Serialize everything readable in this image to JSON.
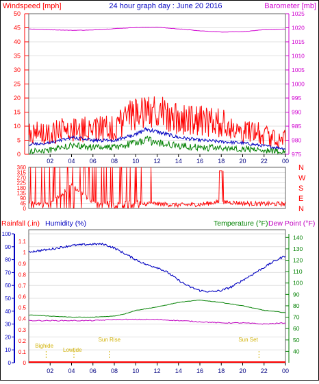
{
  "chart_data": [
    {
      "id": "wind-baro",
      "type": "line",
      "title": "24 hour graph day : June 20 2016",
      "left_axis_label": "Windspeed [mph]",
      "right_axis_label": "Barometer [mb]",
      "left_ticks": [
        0,
        5,
        10,
        15,
        20,
        25,
        30,
        35,
        40,
        45,
        50
      ],
      "left_range": [
        0,
        50
      ],
      "right_ticks": [
        975,
        980,
        985,
        990,
        995,
        1000,
        1005,
        1010,
        1015,
        1020,
        1025
      ],
      "right_range": [
        975,
        1025
      ],
      "x_tick_labels": [
        "02",
        "04",
        "06",
        "08",
        "10",
        "12",
        "14",
        "16",
        "18",
        "20",
        "22",
        "00"
      ],
      "x_range_hours": [
        0,
        24
      ],
      "series": [
        {
          "key": "gust",
          "color": "#ff0000",
          "hours": [
            0,
            2,
            4,
            6,
            8,
            10,
            11,
            12,
            13,
            14,
            16,
            18,
            20,
            22,
            24
          ],
          "values": [
            7,
            8,
            9,
            9,
            9,
            15,
            16,
            15,
            14,
            13,
            12,
            11,
            8,
            7,
            5
          ]
        },
        {
          "key": "average",
          "color": "#0000c0",
          "hours": [
            0,
            2,
            4,
            6,
            8,
            10,
            11,
            12,
            14,
            16,
            18,
            20,
            22,
            24
          ],
          "values": [
            3.5,
            4,
            6,
            5,
            5,
            7,
            9,
            8,
            6,
            5,
            4.5,
            4,
            3,
            2
          ]
        },
        {
          "key": "lull",
          "color": "#008000",
          "hours": [
            0,
            2,
            4,
            6,
            8,
            10,
            11,
            12,
            14,
            16,
            18,
            20,
            22,
            24
          ],
          "values": [
            1,
            1.5,
            3,
            2.5,
            2.5,
            4,
            5,
            4,
            3,
            2.5,
            2,
            2,
            1.5,
            1
          ]
        },
        {
          "key": "barometer",
          "color": "#d000d0",
          "axis": "right",
          "hours": [
            0,
            2,
            4,
            6,
            8,
            10,
            12,
            14,
            16,
            18,
            20,
            22,
            24
          ],
          "values": [
            1019.6,
            1019.3,
            1019.1,
            1019.2,
            1019.7,
            1020.1,
            1020.2,
            1019.6,
            1018.9,
            1018.5,
            1018.6,
            1019.3,
            1019.5
          ]
        }
      ]
    },
    {
      "id": "direction",
      "type": "line",
      "left_ticks": [
        0,
        45,
        90,
        135,
        180,
        225,
        270,
        315,
        360
      ],
      "left_range": [
        0,
        360
      ],
      "right_labels": [
        "N",
        "W",
        "S",
        "E",
        "N"
      ],
      "x_range_hours": [
        0,
        24
      ],
      "series": [
        {
          "key": "direction",
          "color": "#ff0000",
          "hours": [
            0,
            2,
            4,
            6,
            8,
            10,
            12,
            14,
            16,
            18,
            20,
            22,
            24
          ],
          "values": [
            45,
            40,
            200,
            60,
            40,
            50,
            40,
            30,
            35,
            60,
            45,
            40,
            40
          ]
        }
      ]
    },
    {
      "id": "temp-hum-rain",
      "type": "line",
      "left_axis_label": "Rainfall (.in)",
      "humidity_label": "Humidity (%)",
      "temperature_label": "Temperature (°F)",
      "dewpoint_label": "Dew Point (°F)",
      "humidity_ticks": [
        0,
        10,
        20,
        30,
        40,
        50,
        60,
        70,
        80,
        90,
        100
      ],
      "humidity_range": [
        0,
        100
      ],
      "rain_ticks": [
        "0",
        "0.1",
        "0.2",
        "0.3",
        "0.4",
        "0.5",
        "0.6",
        "0.7",
        "0.8",
        "0.9",
        "1",
        "1.1"
      ],
      "rain_range": [
        0,
        1.2
      ],
      "temp_ticks": [
        40,
        50,
        60,
        70,
        80,
        90,
        100,
        110,
        120,
        130,
        140
      ],
      "temp_range": [
        30,
        145
      ],
      "x_tick_labels": [
        "02",
        "04",
        "06",
        "08",
        "10",
        "12",
        "14",
        "16",
        "18",
        "20",
        "22",
        "00"
      ],
      "x_range_hours": [
        0,
        24
      ],
      "tide_labels": [
        "Bighide",
        "Lowtide",
        "Sun Rise",
        "Sun Set"
      ],
      "tide_hours": [
        0.6,
        3.2,
        6.5,
        20.5
      ],
      "series": [
        {
          "key": "humidity",
          "color": "#0000c0",
          "hours": [
            0,
            2,
            4,
            6,
            7,
            8,
            10,
            11,
            12,
            13,
            14,
            15,
            16,
            17,
            18,
            19,
            20,
            21,
            22,
            23,
            24
          ],
          "values": [
            86,
            88,
            91,
            92,
            92,
            89,
            80,
            76,
            74,
            70,
            64,
            59,
            56,
            55,
            56,
            59,
            64,
            69,
            74,
            79,
            83
          ]
        },
        {
          "key": "temperature",
          "color": "#008000",
          "hours": [
            0,
            2,
            4,
            6,
            8,
            9,
            10,
            12,
            14,
            16,
            17,
            18,
            20,
            22,
            24
          ],
          "values": [
            72,
            71,
            70,
            70,
            71,
            73,
            76,
            79,
            83,
            85,
            84,
            83,
            80,
            76,
            74
          ]
        },
        {
          "key": "dewpoint",
          "color": "#c000c0",
          "hours": [
            0,
            2,
            4,
            6,
            8,
            10,
            12,
            14,
            16,
            18,
            20,
            22,
            24
          ],
          "values": [
            67,
            67,
            67,
            67,
            68,
            68,
            68,
            67,
            66,
            65,
            65,
            64,
            65
          ]
        },
        {
          "key": "rainfall",
          "color": "#ff0000",
          "hours": [
            0,
            24
          ],
          "values": [
            0,
            0
          ]
        }
      ]
    }
  ]
}
